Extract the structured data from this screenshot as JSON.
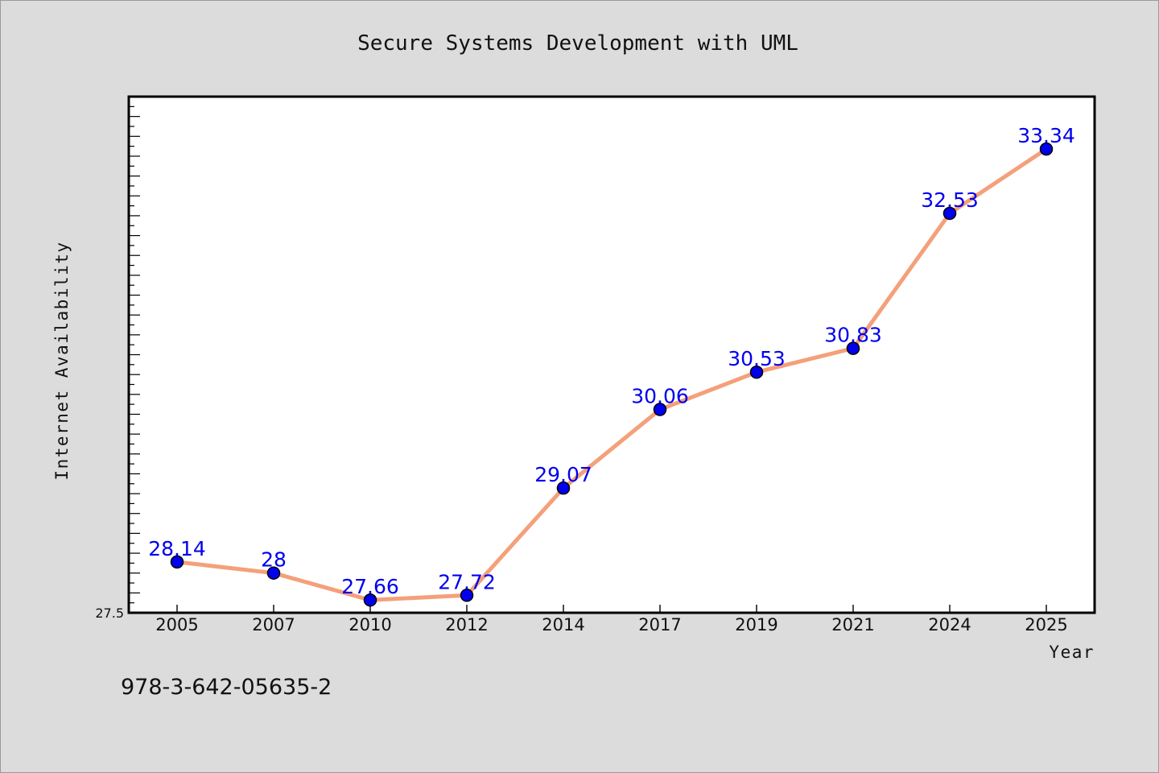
{
  "chart_data": {
    "type": "line",
    "title": "Secure Systems Development with UML",
    "xlabel": "Year",
    "ylabel": "Internet Availability",
    "categories": [
      "2005",
      "2007",
      "2010",
      "2012",
      "2014",
      "2017",
      "2019",
      "2021",
      "2024",
      "2025"
    ],
    "series": [
      {
        "values": [
          28.14,
          28,
          27.66,
          27.72,
          29.07,
          30.06,
          30.53,
          30.83,
          32.53,
          33.34
        ]
      }
    ],
    "y_tick_labels": [
      "27.5"
    ],
    "ylim": [
      27.5,
      34
    ],
    "grid": false,
    "data_labels": true,
    "line_color": "#f4a07a",
    "marker_color": "#0000ee"
  },
  "footer": {
    "isbn": "978-3-642-05635-2"
  }
}
